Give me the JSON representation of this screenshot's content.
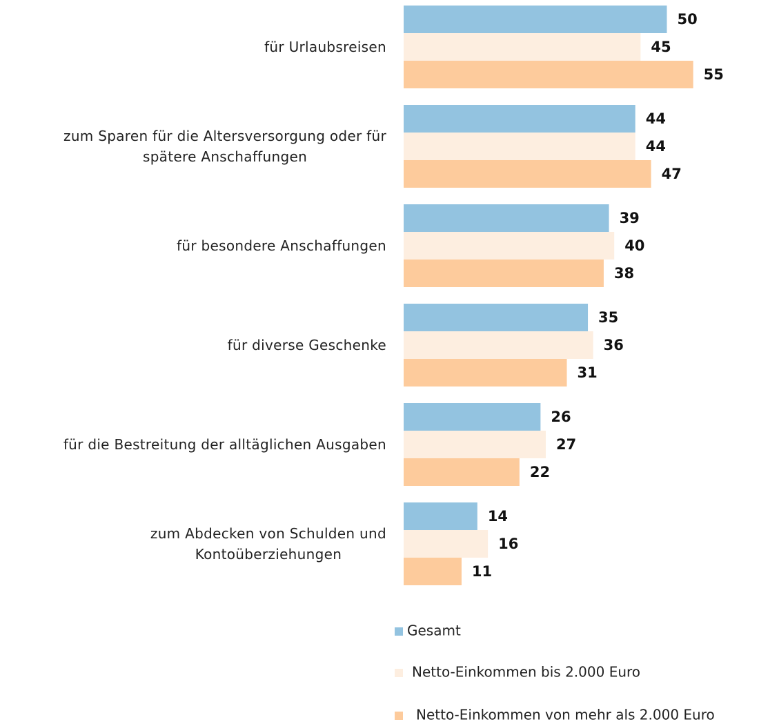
{
  "chart_data": {
    "type": "bar",
    "orientation": "horizontal",
    "categories": [
      "für Urlaubsreisen",
      "zum Sparen für die Altersversorgung oder für\nspätere Anschaffungen",
      "für besondere Anschaffungen",
      "für diverse Geschenke",
      "für die Bestreitung der alltäglichen Ausgaben",
      "zum Abdecken von Schulden und\nKontoüberziehungen"
    ],
    "series": [
      {
        "name": "Gesamt",
        "color": "#93c3e0",
        "values": [
          50,
          44,
          39,
          35,
          26,
          14
        ]
      },
      {
        "name": "Netto-Einkommen bis 2.000 Euro",
        "color": "#fdeee0",
        "values": [
          45,
          44,
          40,
          36,
          27,
          16
        ]
      },
      {
        "name": "Netto-Einkommen von mehr als 2.000 Euro",
        "color": "#fdcb9c",
        "values": [
          55,
          47,
          38,
          31,
          22,
          11
        ]
      }
    ],
    "legend": "bottom"
  }
}
